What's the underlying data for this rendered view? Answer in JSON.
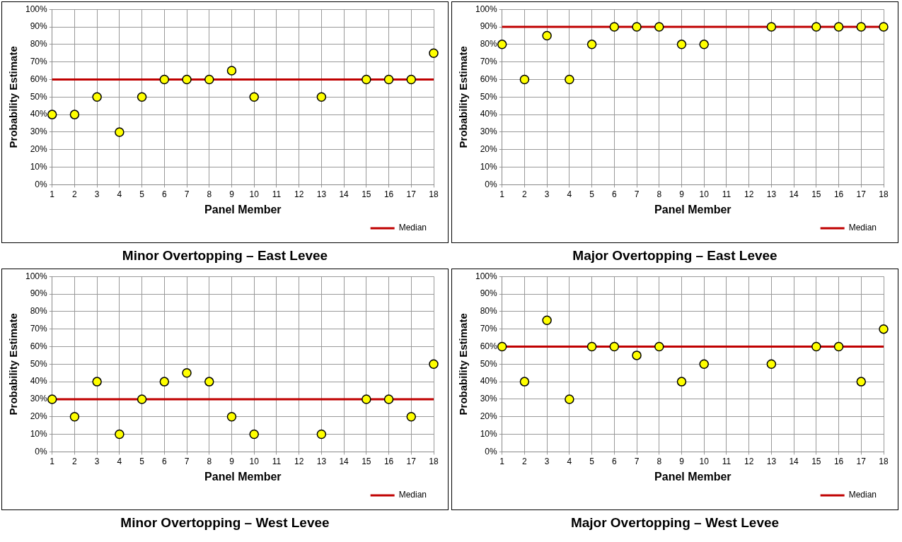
{
  "chart_data": [
    {
      "type": "scatter",
      "title": "Minor Overtopping – East Levee",
      "xlabel": "Panel Member",
      "ylabel": "Probability Estimate",
      "xlim": [
        1,
        18
      ],
      "xticks": [
        1,
        2,
        3,
        4,
        5,
        6,
        7,
        8,
        9,
        10,
        11,
        12,
        13,
        14,
        15,
        16,
        17,
        18
      ],
      "ylim": [
        0,
        100
      ],
      "yticks": [
        {
          "value": 0,
          "label": "0%"
        },
        {
          "value": 10,
          "label": "10%"
        },
        {
          "value": 20,
          "label": "20%"
        },
        {
          "value": 30,
          "label": "30%"
        },
        {
          "value": 40,
          "label": "40%"
        },
        {
          "value": 50,
          "label": "50%"
        },
        {
          "value": 60,
          "label": "60%"
        },
        {
          "value": 70,
          "label": "70%"
        },
        {
          "value": 80,
          "label": "80%"
        },
        {
          "value": 90,
          "label": "90%"
        },
        {
          "value": 100,
          "label": "100%"
        }
      ],
      "grid": true,
      "legend": "bottom right",
      "marker": "circle",
      "x": [
        1,
        2,
        3,
        4,
        5,
        6,
        7,
        8,
        9,
        10,
        13,
        15,
        16,
        17,
        18
      ],
      "series": [
        {
          "color": "#ffff00",
          "values": [
            40,
            40,
            50,
            30,
            50,
            60,
            60,
            60,
            65,
            50,
            50,
            60,
            60,
            60,
            75
          ]
        }
      ],
      "ref_lines": [
        {
          "axis": "y",
          "value": 60,
          "label": "Median",
          "color": "#c00000"
        }
      ]
    },
    {
      "type": "scatter",
      "title": "Major Overtopping – East Levee",
      "xlabel": "Panel Member",
      "ylabel": "Probability Estimate",
      "xlim": [
        1,
        18
      ],
      "xticks": [
        1,
        2,
        3,
        4,
        5,
        6,
        7,
        8,
        9,
        10,
        11,
        12,
        13,
        14,
        15,
        16,
        17,
        18
      ],
      "ylim": [
        0,
        100
      ],
      "yticks": [
        {
          "value": 0,
          "label": "0%"
        },
        {
          "value": 10,
          "label": "10%"
        },
        {
          "value": 20,
          "label": "20%"
        },
        {
          "value": 30,
          "label": "30%"
        },
        {
          "value": 40,
          "label": "40%"
        },
        {
          "value": 50,
          "label": "50%"
        },
        {
          "value": 60,
          "label": "60%"
        },
        {
          "value": 70,
          "label": "70%"
        },
        {
          "value": 80,
          "label": "80%"
        },
        {
          "value": 90,
          "label": "90%"
        },
        {
          "value": 100,
          "label": "100%"
        }
      ],
      "grid": true,
      "legend": "bottom right",
      "marker": "circle",
      "x": [
        1,
        2,
        3,
        4,
        5,
        6,
        7,
        8,
        9,
        10,
        13,
        15,
        16,
        17,
        18
      ],
      "series": [
        {
          "color": "#ffff00",
          "values": [
            80,
            60,
            85,
            60,
            80,
            90,
            90,
            90,
            80,
            80,
            90,
            90,
            90,
            90,
            90
          ]
        }
      ],
      "ref_lines": [
        {
          "axis": "y",
          "value": 90,
          "label": "Median",
          "color": "#c00000"
        }
      ]
    },
    {
      "type": "scatter",
      "title": "Minor Overtopping – West Levee",
      "xlabel": "Panel Member",
      "ylabel": "Probability Estimate",
      "xlim": [
        1,
        18
      ],
      "xticks": [
        1,
        2,
        3,
        4,
        5,
        6,
        7,
        8,
        9,
        10,
        11,
        12,
        13,
        14,
        15,
        16,
        17,
        18
      ],
      "ylim": [
        0,
        100
      ],
      "yticks": [
        {
          "value": 0,
          "label": "0%"
        },
        {
          "value": 10,
          "label": "10%"
        },
        {
          "value": 20,
          "label": "20%"
        },
        {
          "value": 30,
          "label": "30%"
        },
        {
          "value": 40,
          "label": "40%"
        },
        {
          "value": 50,
          "label": "50%"
        },
        {
          "value": 60,
          "label": "60%"
        },
        {
          "value": 70,
          "label": "70%"
        },
        {
          "value": 80,
          "label": "80%"
        },
        {
          "value": 90,
          "label": "90%"
        },
        {
          "value": 100,
          "label": "100%"
        }
      ],
      "grid": true,
      "legend": "bottom right",
      "marker": "circle",
      "x": [
        1,
        2,
        3,
        4,
        5,
        6,
        7,
        8,
        9,
        10,
        13,
        15,
        16,
        17,
        18
      ],
      "series": [
        {
          "color": "#ffff00",
          "values": [
            30,
            20,
            40,
            10,
            30,
            40,
            45,
            40,
            20,
            10,
            10,
            30,
            30,
            20,
            50
          ]
        }
      ],
      "ref_lines": [
        {
          "axis": "y",
          "value": 30,
          "label": "Median",
          "color": "#c00000"
        }
      ]
    },
    {
      "type": "scatter",
      "title": "Major Overtopping – West Levee",
      "xlabel": "Panel Member",
      "ylabel": "Probability Estimate",
      "xlim": [
        1,
        18
      ],
      "xticks": [
        1,
        2,
        3,
        4,
        5,
        6,
        7,
        8,
        9,
        10,
        11,
        12,
        13,
        14,
        15,
        16,
        17,
        18
      ],
      "ylim": [
        0,
        100
      ],
      "yticks": [
        {
          "value": 0,
          "label": "0%"
        },
        {
          "value": 10,
          "label": "10%"
        },
        {
          "value": 20,
          "label": "20%"
        },
        {
          "value": 30,
          "label": "30%"
        },
        {
          "value": 40,
          "label": "40%"
        },
        {
          "value": 50,
          "label": "50%"
        },
        {
          "value": 60,
          "label": "60%"
        },
        {
          "value": 70,
          "label": "70%"
        },
        {
          "value": 80,
          "label": "80%"
        },
        {
          "value": 90,
          "label": "90%"
        },
        {
          "value": 100,
          "label": "100%"
        }
      ],
      "grid": true,
      "legend": "bottom right",
      "marker": "circle",
      "x": [
        1,
        2,
        3,
        4,
        5,
        6,
        7,
        8,
        9,
        10,
        13,
        15,
        16,
        17,
        18
      ],
      "series": [
        {
          "color": "#ffff00",
          "values": [
            60,
            40,
            75,
            30,
            60,
            60,
            55,
            60,
            40,
            50,
            50,
            60,
            60,
            40,
            70
          ]
        }
      ],
      "ref_lines": [
        {
          "axis": "y",
          "value": 60,
          "label": "Median",
          "color": "#c00000"
        }
      ]
    }
  ]
}
